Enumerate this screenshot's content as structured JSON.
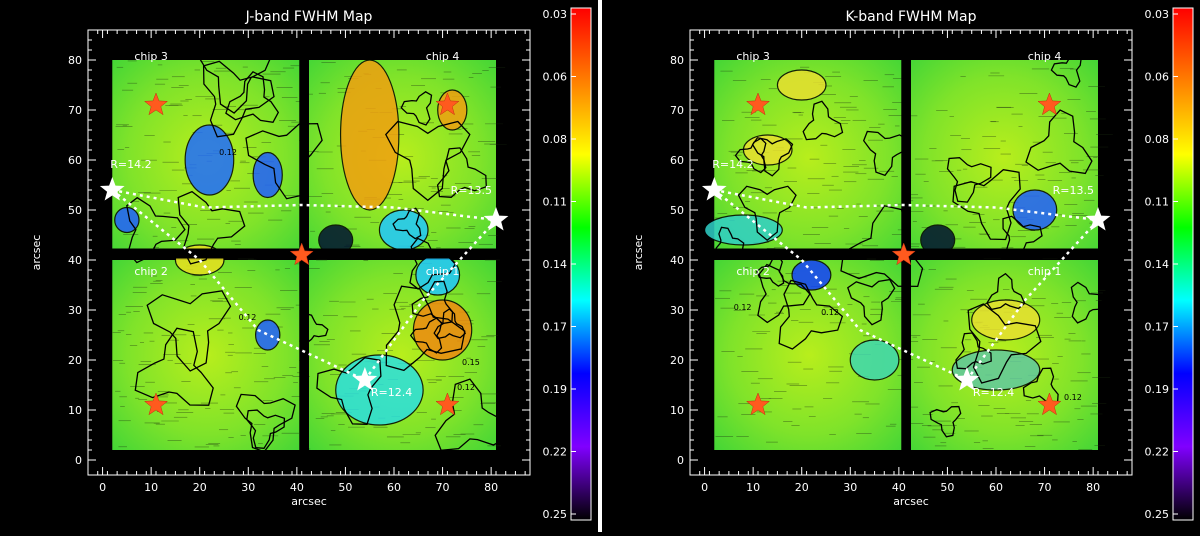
{
  "chart_data": [
    {
      "type": "heatmap",
      "title": "J-band FWHM Map",
      "xlabel": "arcsec",
      "ylabel": "arcsec",
      "xlim": [
        -3,
        88
      ],
      "ylim": [
        -3,
        86
      ],
      "xticks": [
        0,
        10,
        20,
        30,
        40,
        50,
        60,
        70,
        80
      ],
      "yticks": [
        0,
        10,
        20,
        30,
        40,
        50,
        60,
        70,
        80
      ],
      "colorbar": {
        "labels": [
          "0.03",
          "0.06",
          "0.08",
          "0.11",
          "0.14",
          "0.17",
          "0.19",
          "0.22",
          "0.25"
        ],
        "colors": [
          "#ff0000",
          "#ff7f00",
          "#ffff00",
          "#00ff00",
          "#00ffff",
          "#0000ff",
          "#8000ff",
          "#000000"
        ]
      },
      "chip_labels": [
        {
          "text": "chip 3",
          "x": 10,
          "y": 80
        },
        {
          "text": "chip 4",
          "x": 70,
          "y": 80
        },
        {
          "text": "chip 2",
          "x": 10,
          "y": 37
        },
        {
          "text": "chip 1",
          "x": 70,
          "y": 37
        }
      ],
      "guide_stars": [
        {
          "name": "R=14.2",
          "x": 2,
          "y": 54
        },
        {
          "name": "R=13.5",
          "x": 81,
          "y": 48
        },
        {
          "name": "R=12.4",
          "x": 54,
          "y": 16
        }
      ],
      "reference_stars": [
        {
          "x": 11,
          "y": 71
        },
        {
          "x": 71,
          "y": 71
        },
        {
          "x": 41,
          "y": 41
        },
        {
          "x": 11,
          "y": 11
        },
        {
          "x": 71,
          "y": 11
        }
      ],
      "contour_labels": [
        {
          "text": "0.12",
          "x": 24,
          "y": 61
        },
        {
          "text": "0.12",
          "x": 28,
          "y": 28
        },
        {
          "text": "0.15",
          "x": 74,
          "y": 19
        },
        {
          "text": "0.12",
          "x": 73,
          "y": 14
        }
      ]
    },
    {
      "type": "heatmap",
      "title": "K-band FWHM Map",
      "xlabel": "arcsec",
      "ylabel": "arcsec",
      "xlim": [
        -3,
        88
      ],
      "ylim": [
        -3,
        86
      ],
      "xticks": [
        0,
        10,
        20,
        30,
        40,
        50,
        60,
        70,
        80
      ],
      "yticks": [
        0,
        10,
        20,
        30,
        40,
        50,
        60,
        70,
        80
      ],
      "colorbar": {
        "labels": [
          "0.03",
          "0.06",
          "0.08",
          "0.11",
          "0.14",
          "0.17",
          "0.19",
          "0.22",
          "0.25"
        ],
        "colors": [
          "#ff0000",
          "#ff7f00",
          "#ffff00",
          "#00ff00",
          "#00ffff",
          "#0000ff",
          "#8000ff",
          "#000000"
        ]
      },
      "chip_labels": [
        {
          "text": "chip 3",
          "x": 10,
          "y": 80
        },
        {
          "text": "chip 4",
          "x": 70,
          "y": 80
        },
        {
          "text": "chip 2",
          "x": 10,
          "y": 37
        },
        {
          "text": "chip 1",
          "x": 70,
          "y": 37
        }
      ],
      "guide_stars": [
        {
          "name": "R=14.2",
          "x": 2,
          "y": 54
        },
        {
          "name": "R=13.5",
          "x": 81,
          "y": 48
        },
        {
          "name": "R=12.4",
          "x": 54,
          "y": 16
        }
      ],
      "reference_stars": [
        {
          "x": 11,
          "y": 71
        },
        {
          "x": 71,
          "y": 71
        },
        {
          "x": 41,
          "y": 41
        },
        {
          "x": 11,
          "y": 11
        },
        {
          "x": 71,
          "y": 11
        }
      ],
      "contour_labels": [
        {
          "text": "0.12",
          "x": 6,
          "y": 30
        },
        {
          "text": "0.12",
          "x": 24,
          "y": 29
        },
        {
          "text": "0.12",
          "x": 74,
          "y": 12
        },
        {
          "text": "0.12",
          "x": 77,
          "y": 40
        }
      ]
    }
  ]
}
